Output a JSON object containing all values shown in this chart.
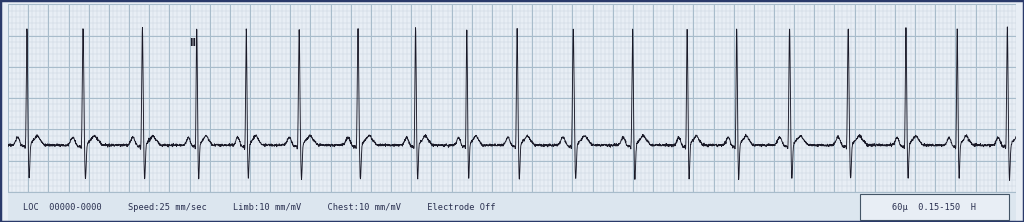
{
  "bg_color": "#e8eef5",
  "grid_minor_color": "#c5d2de",
  "grid_major_color": "#a8bccb",
  "ecg_color": "#1a1a28",
  "border_color": "#2a3a6a",
  "bottom_bg": "#dce6ef",
  "bottom_text": "LOC  00000-0000     Speed:25 mm/sec     Limb:10 mm/mV     Chest:10 mm/mV     Electrode Off",
  "bottom_right_text": "60μ  0.15-150  H",
  "lead_label": "II",
  "duration": 10.0,
  "fs": 500,
  "num_beats": 18
}
